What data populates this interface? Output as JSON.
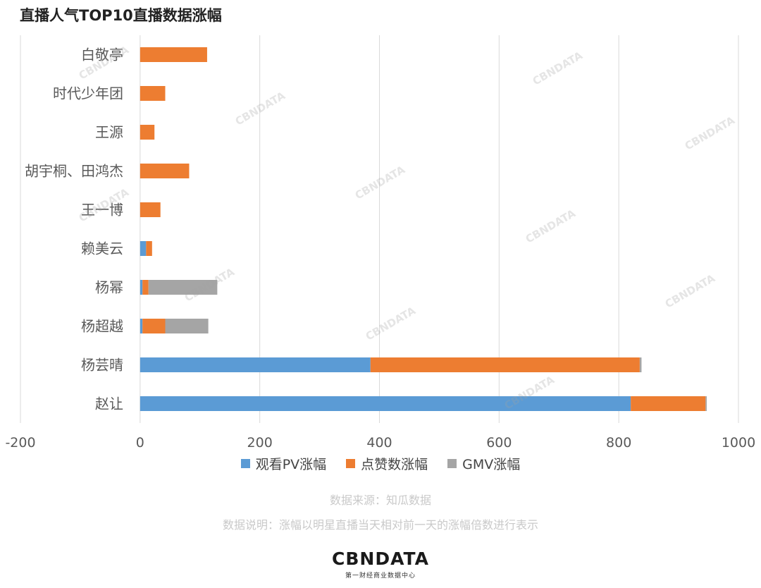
{
  "title": "直播人气TOP10直播数据涨幅",
  "colors": {
    "pv": "#5B9BD5",
    "likes": "#ED7D31",
    "gmv": "#A5A5A5",
    "grid": "#d9d9d9"
  },
  "chart_data": {
    "type": "bar",
    "orientation": "horizontal",
    "stacked": true,
    "categories": [
      "白敬亭",
      "时代少年团",
      "王源",
      "胡宇桐、田鸿杰",
      "王一博",
      "赖美云",
      "杨幂",
      "杨超越",
      "杨芸晴",
      "赵让"
    ],
    "series": [
      {
        "name": "观看PV涨幅",
        "color": "#5B9BD5",
        "values": [
          0,
          0,
          0,
          0,
          0,
          10,
          4,
          4,
          385,
          820
        ]
      },
      {
        "name": "点赞数涨幅",
        "color": "#ED7D31",
        "values": [
          112,
          42,
          24,
          82,
          34,
          10,
          10,
          38,
          450,
          125
        ]
      },
      {
        "name": "GMV涨幅",
        "color": "#A5A5A5",
        "values": [
          0,
          0,
          0,
          0,
          0,
          0,
          115,
          72,
          3,
          2
        ]
      }
    ],
    "xlim": [
      -200,
      1000
    ],
    "xticks": [
      -200,
      0,
      200,
      400,
      600,
      800,
      1000
    ],
    "grid": true,
    "legend_position": "bottom"
  },
  "notes": {
    "source": "数据来源：知瓜数据",
    "explanation": "数据说明：涨幅以明星直播当天相对前一天的涨幅倍数进行表示"
  },
  "logo": {
    "main": "CBNDATA",
    "sub": "第一财经商业数据中心"
  },
  "watermark_text": "CBNDATA"
}
